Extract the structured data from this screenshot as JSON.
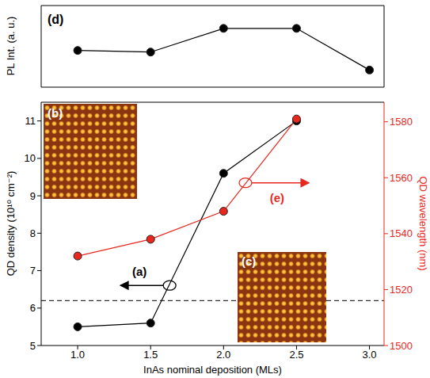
{
  "chart_data": [
    {
      "type": "line",
      "y_label": "PL Int. (a. u.)",
      "annotations": [
        "(d)"
      ],
      "x": [
        1.0,
        1.5,
        2.0,
        2.5,
        3.0
      ],
      "series": [
        {
          "name": "PL Int. (a. u.)",
          "color": "#000000",
          "marker": "circle",
          "values": [
            0.45,
            0.43,
            0.72,
            0.72,
            0.21
          ]
        }
      ],
      "xlim": [
        0.75,
        3.1
      ],
      "xticks": [
        1,
        1.5,
        2,
        2.5,
        3
      ],
      "ylim": [
        0,
        1
      ],
      "tick_labels": false
    },
    {
      "type": "line",
      "x_label": "InAs nominal deposition (MLs)",
      "y_label": "QD density (10¹⁰ cm⁻²)",
      "y2_label": "QD wavelength (nm)",
      "annotations": [
        "(a)",
        "(e)",
        "(b)",
        "(c)"
      ],
      "x": [
        1.0,
        1.5,
        2.0,
        2.5
      ],
      "series": [
        {
          "name": "QD density (10¹⁰ cm⁻²)",
          "color": "#000000",
          "marker": "circle",
          "values": [
            5.5,
            5.6,
            9.6,
            11.0
          ]
        },
        {
          "name": "QD wavelength (nm)",
          "color": "#e8281e",
          "marker": "circle",
          "axis": "y2",
          "values": [
            1532,
            1538,
            1548,
            1581
          ]
        }
      ],
      "threshold": 6.2,
      "xlim": [
        0.75,
        3.1
      ],
      "xticks": [
        {
          "value": 1,
          "label": "1.0"
        },
        {
          "value": 1.5,
          "label": "1.5"
        },
        {
          "value": 2,
          "label": "2.0"
        },
        {
          "value": 2.5,
          "label": "2.5"
        },
        {
          "value": 3,
          "label": "3.0"
        }
      ],
      "ylim": [
        5,
        11.5
      ],
      "yticks": [
        5,
        6,
        7,
        8,
        9,
        10,
        11
      ],
      "y2lim": [
        1500,
        1587
      ],
      "y2ticks": [
        1500,
        1520,
        1540,
        1560,
        1580
      ]
    }
  ]
}
